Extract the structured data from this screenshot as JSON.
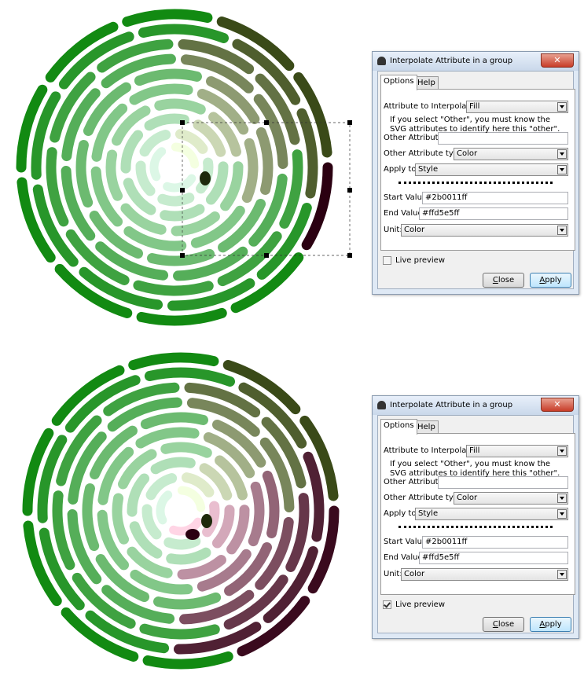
{
  "dialogs": [
    {
      "title": "Interpolate Attribute in a group",
      "tabs": [
        "Options",
        "Help"
      ],
      "rows": [
        {
          "label": "Attribute to Interpolate:",
          "value": "Fill",
          "kind": "combo"
        },
        {
          "label": "Other Attribute:",
          "kind": "input"
        },
        {
          "label": "Other Attribute type:",
          "value": "Color",
          "kind": "combo"
        },
        {
          "label": "Apply to:",
          "value": "Style",
          "kind": "combo"
        },
        {
          "label": "Start Value:",
          "value": "#2b0011ff",
          "kind": "input"
        },
        {
          "label": "End Value:",
          "value": "#ffd5e5ff",
          "kind": "input"
        },
        {
          "label": "Unit:",
          "value": "Color",
          "kind": "combo"
        }
      ],
      "info": [
        "If you select \"Other\", you must know the",
        "SVG attributes to identify here this \"other\"."
      ],
      "live_preview_label": "Live preview",
      "live_preview_checked": false,
      "buttons": [
        "Close",
        "Apply"
      ]
    },
    {
      "title": "Interpolate Attribute in a group",
      "tabs": [
        "Options",
        "Help"
      ],
      "rows": [
        {
          "label": "Attribute to Interpolate:",
          "value": "Fill",
          "kind": "combo"
        },
        {
          "label": "Other Attribute:",
          "kind": "input"
        },
        {
          "label": "Other Attribute type:",
          "value": "Color",
          "kind": "combo"
        },
        {
          "label": "Apply to:",
          "value": "Style",
          "kind": "combo"
        },
        {
          "label": "Start Value:",
          "value": "#2b0011ff",
          "kind": "input"
        },
        {
          "label": "End Value:",
          "value": "#ffd5e5ff",
          "kind": "input"
        },
        {
          "label": "Unit:",
          "value": "Color",
          "kind": "combo"
        }
      ],
      "info": [
        "If you select \"Other\", you must know the",
        "SVG attributes to identify here this \"other\"."
      ],
      "live_preview_label": "Live preview",
      "live_preview_checked": true,
      "buttons": [
        "Close",
        "Apply"
      ]
    }
  ]
}
